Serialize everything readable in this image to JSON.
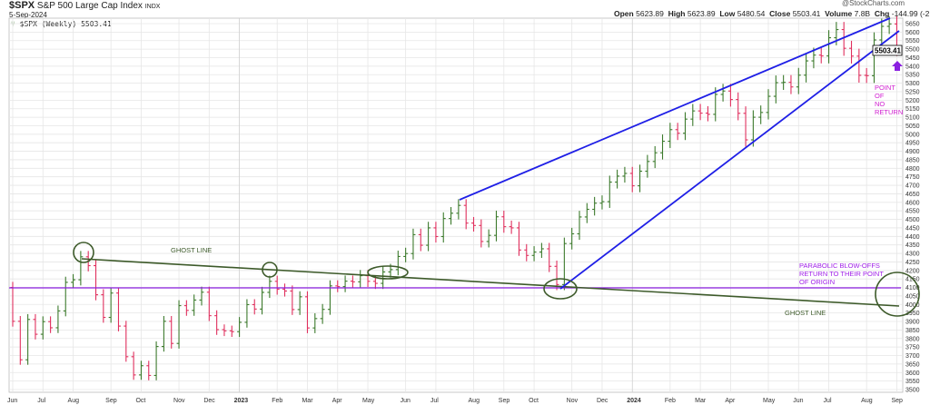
{
  "header": {
    "symbol": "$SPX",
    "name": "S&P 500 Large Cap Index",
    "exchange": "INDX",
    "date": "5-Sep-2024",
    "legend": "$SPX (Weekly) 5503.41",
    "watermark": "@StockCharts.com",
    "open_label": "Open",
    "open": "5623.89",
    "high_label": "High",
    "high": "5623.89",
    "low_label": "Low",
    "low": "5480.54",
    "close_label": "Close",
    "close": "5503.41",
    "volume_label": "Volume",
    "volume": "7.8B",
    "chg_label": "Chg",
    "chg": "-144.99 (-2.57%)",
    "price_tag": "5503.41"
  },
  "annotations": {
    "ghost_line_1": "GHOST LINE",
    "ghost_line_2": "GHOST LINE",
    "parabolic": [
      "PARABOLIC BLOW-OFFS",
      "RETURN TO THEIR POINT",
      "OF ORIGIN"
    ],
    "point_of_no_return": [
      "POINT",
      "OF",
      "NO",
      "RETURN"
    ]
  },
  "colors": {
    "up": "#3c7a2c",
    "down": "#e0305e",
    "trend": "#1f1fe6",
    "ghost": "#3d5a2a",
    "purple": "#8a1fe0",
    "magenta": "#d020d0"
  },
  "chart_data": {
    "type": "ohlc",
    "title": "$SPX (Weekly)",
    "ylim": [
      3500,
      5650
    ],
    "y_ticks": [
      3500,
      3550,
      3600,
      3650,
      3700,
      3750,
      3800,
      3850,
      3900,
      3950,
      4000,
      4050,
      4100,
      4150,
      4200,
      4250,
      4300,
      4350,
      4400,
      4450,
      4500,
      4550,
      4600,
      4650,
      4700,
      4750,
      4800,
      4850,
      4900,
      4950,
      5000,
      5050,
      5100,
      5150,
      5200,
      5250,
      5300,
      5350,
      5400,
      5450,
      5500,
      5550,
      5600,
      5650
    ],
    "x_ticks": [
      {
        "label": "Jun",
        "week": 0
      },
      {
        "label": "Jul",
        "week": 4
      },
      {
        "label": "Aug",
        "week": 8
      },
      {
        "label": "Sep",
        "week": 13
      },
      {
        "label": "Oct",
        "week": 17
      },
      {
        "label": "Nov",
        "week": 22
      },
      {
        "label": "Dec",
        "week": 26
      },
      {
        "label": "2023",
        "week": 30
      },
      {
        "label": "Feb",
        "week": 35
      },
      {
        "label": "Mar",
        "week": 39
      },
      {
        "label": "Apr",
        "week": 43
      },
      {
        "label": "May",
        "week": 47
      },
      {
        "label": "Jun",
        "week": 52
      },
      {
        "label": "Jul",
        "week": 56
      },
      {
        "label": "Aug",
        "week": 61
      },
      {
        "label": "Sep",
        "week": 65
      },
      {
        "label": "Oct",
        "week": 69
      },
      {
        "label": "Nov",
        "week": 74
      },
      {
        "label": "Dec",
        "week": 78
      },
      {
        "label": "2024",
        "week": 82
      },
      {
        "label": "Feb",
        "week": 87
      },
      {
        "label": "Mar",
        "week": 91
      },
      {
        "label": "Apr",
        "week": 95
      },
      {
        "label": "May",
        "week": 100
      },
      {
        "label": "Jun",
        "week": 104
      },
      {
        "label": "Jul",
        "week": 108
      },
      {
        "label": "Aug",
        "week": 113
      },
      {
        "label": "Sep",
        "week": 117
      }
    ],
    "first_open": 4100,
    "closes": [
      3901,
      3675,
      3912,
      3825,
      3899,
      3863,
      3962,
      4130,
      4145,
      4280,
      4228,
      4057,
      3924,
      4067,
      3873,
      3693,
      3586,
      3640,
      3583,
      3753,
      3901,
      3771,
      3993,
      3965,
      4026,
      4072,
      3934,
      3852,
      3845,
      3840,
      3895,
      3999,
      3973,
      4071,
      4136,
      4090,
      4079,
      3970,
      4045,
      3862,
      3917,
      3971,
      4109,
      4105,
      4137,
      4133,
      4169,
      4136,
      4124,
      4191,
      4205,
      4282,
      4299,
      4410,
      4348,
      4450,
      4399,
      4505,
      4536,
      4582,
      4478,
      4464,
      4370,
      4406,
      4515,
      4457,
      4450,
      4320,
      4288,
      4308,
      4327,
      4224,
      4117,
      4358,
      4415,
      4514,
      4559,
      4595,
      4604,
      4719,
      4754,
      4770,
      4697,
      4783,
      4840,
      4891,
      4959,
      5027,
      5006,
      5089,
      5137,
      5124,
      5117,
      5234,
      5254,
      5204,
      5123,
      4967,
      5100,
      5128,
      5223,
      5303,
      5305,
      5278,
      5347,
      5431,
      5465,
      5460,
      5567,
      5615,
      5505,
      5459,
      5346,
      5344,
      5554,
      5634,
      5648,
      5503.41
    ]
  }
}
